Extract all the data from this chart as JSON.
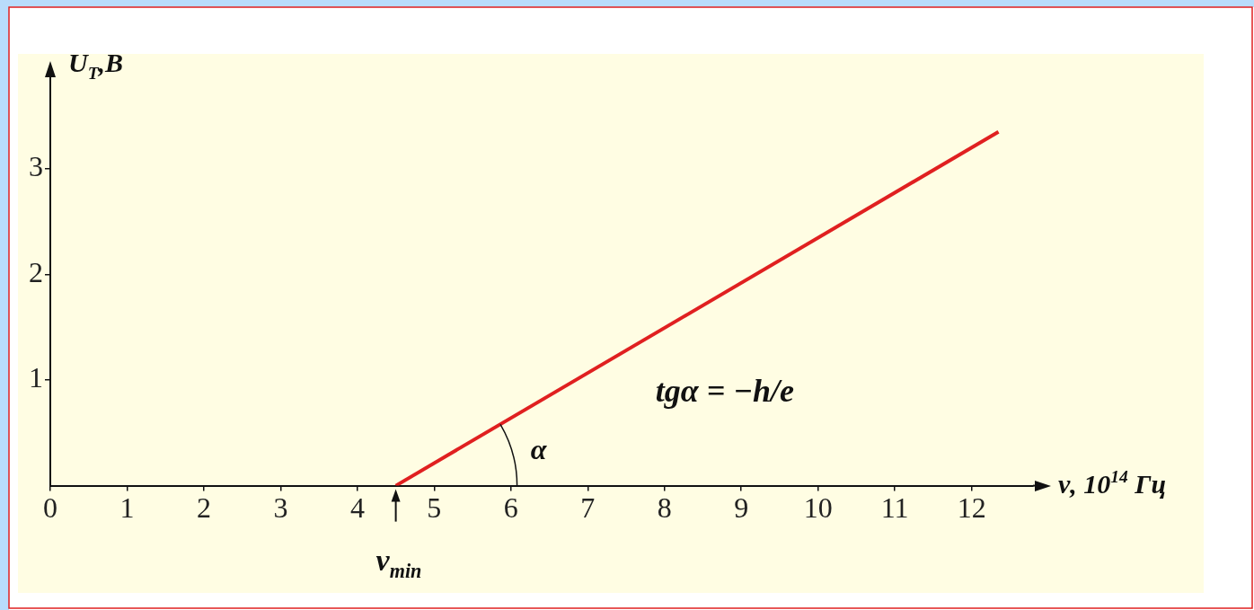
{
  "chart_data": {
    "type": "line",
    "xlabel": "ν, 10$^{14}$ Гц",
    "ylabel": "U$_{Т}$,В",
    "x": [
      4.5,
      12.35
    ],
    "series": [
      {
        "color": "#e02020",
        "values": [
          0,
          3.35
        ]
      }
    ],
    "xlim": [
      0,
      12.8
    ],
    "xticks": [
      0,
      1,
      2,
      3,
      4,
      5,
      6,
      7,
      8,
      9,
      10,
      11,
      12
    ],
    "ylim": [
      0,
      3.85
    ],
    "yticks": [
      1,
      2,
      3
    ],
    "marker": "none",
    "line_style": "solid",
    "legend": false,
    "grid": false,
    "annotations": [
      {
        "text": "ν$_{min}$",
        "x": 4.5,
        "y": 0
      },
      "α",
      "tgα = −h/e"
    ]
  }
}
